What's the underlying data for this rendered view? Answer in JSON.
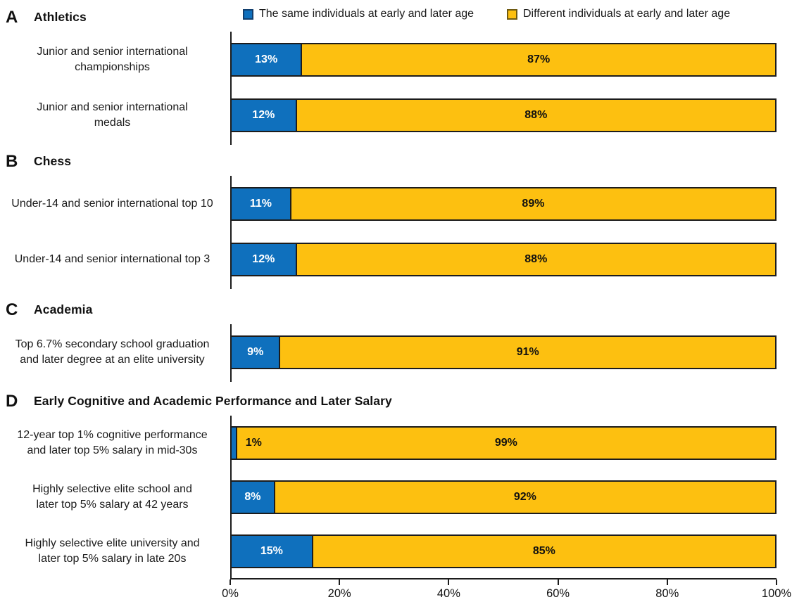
{
  "colors": {
    "same": "#0F70BD",
    "different": "#FDC010",
    "bar_border": "#1C1C1C",
    "text": "#111111"
  },
  "legend": {
    "items": [
      {
        "label": "The same individuals at early and later age",
        "color_key": "same"
      },
      {
        "label": "Different individuals at early and later age",
        "color_key": "different"
      }
    ]
  },
  "x_axis": {
    "ticks": [
      "0%",
      "20%",
      "40%",
      "60%",
      "80%",
      "100%"
    ],
    "range": [
      0,
      100
    ]
  },
  "chart_data": {
    "type": "bar",
    "orientation": "horizontal",
    "stacked": true,
    "unit": "percent",
    "xlim": [
      0,
      100
    ],
    "x_ticks": [
      "0%",
      "20%",
      "40%",
      "60%",
      "80%",
      "100%"
    ],
    "grid": false,
    "legend_position": "top",
    "series_names": [
      "The same individuals at early and later age",
      "Different individuals at early and later age"
    ],
    "panels": [
      {
        "letter": "A",
        "title": "Athletics",
        "show_x_axis": false,
        "rows": [
          {
            "label": "Junior and senior international\nchampionships",
            "same_pct": 13,
            "different_pct": 87,
            "same_label": "13%",
            "different_label": "87%"
          },
          {
            "label": "Junior and senior international\nmedals",
            "same_pct": 12,
            "different_pct": 88,
            "same_label": "12%",
            "different_label": "88%"
          }
        ]
      },
      {
        "letter": "B",
        "title": "Chess",
        "show_x_axis": false,
        "rows": [
          {
            "label": "Under-14 and senior international top 10",
            "same_pct": 11,
            "different_pct": 89,
            "same_label": "11%",
            "different_label": "89%"
          },
          {
            "label": "Under-14 and senior international top 3",
            "same_pct": 12,
            "different_pct": 88,
            "same_label": "12%",
            "different_label": "88%"
          }
        ]
      },
      {
        "letter": "C",
        "title": "Academia",
        "show_x_axis": false,
        "rows": [
          {
            "label": "Top 6.7% secondary school graduation\nand later degree at an elite university",
            "same_pct": 9,
            "different_pct": 91,
            "same_label": "9%",
            "different_label": "91%"
          }
        ]
      },
      {
        "letter": "D",
        "title": "Early Cognitive and Academic Performance and Later Salary",
        "show_x_axis": true,
        "rows": [
          {
            "label": "12-year top 1% cognitive performance\nand later top 5% salary in mid-30s",
            "same_pct": 1,
            "different_pct": 99,
            "same_label": "1%",
            "different_label": "99%"
          },
          {
            "label": "Highly selective elite school and\nlater top 5% salary at 42 years",
            "same_pct": 8,
            "different_pct": 92,
            "same_label": "8%",
            "different_label": "92%"
          },
          {
            "label": "Highly selective elite university and\nlater top 5% salary in late 20s",
            "same_pct": 15,
            "different_pct": 85,
            "same_label": "15%",
            "different_label": "85%"
          }
        ]
      }
    ]
  }
}
